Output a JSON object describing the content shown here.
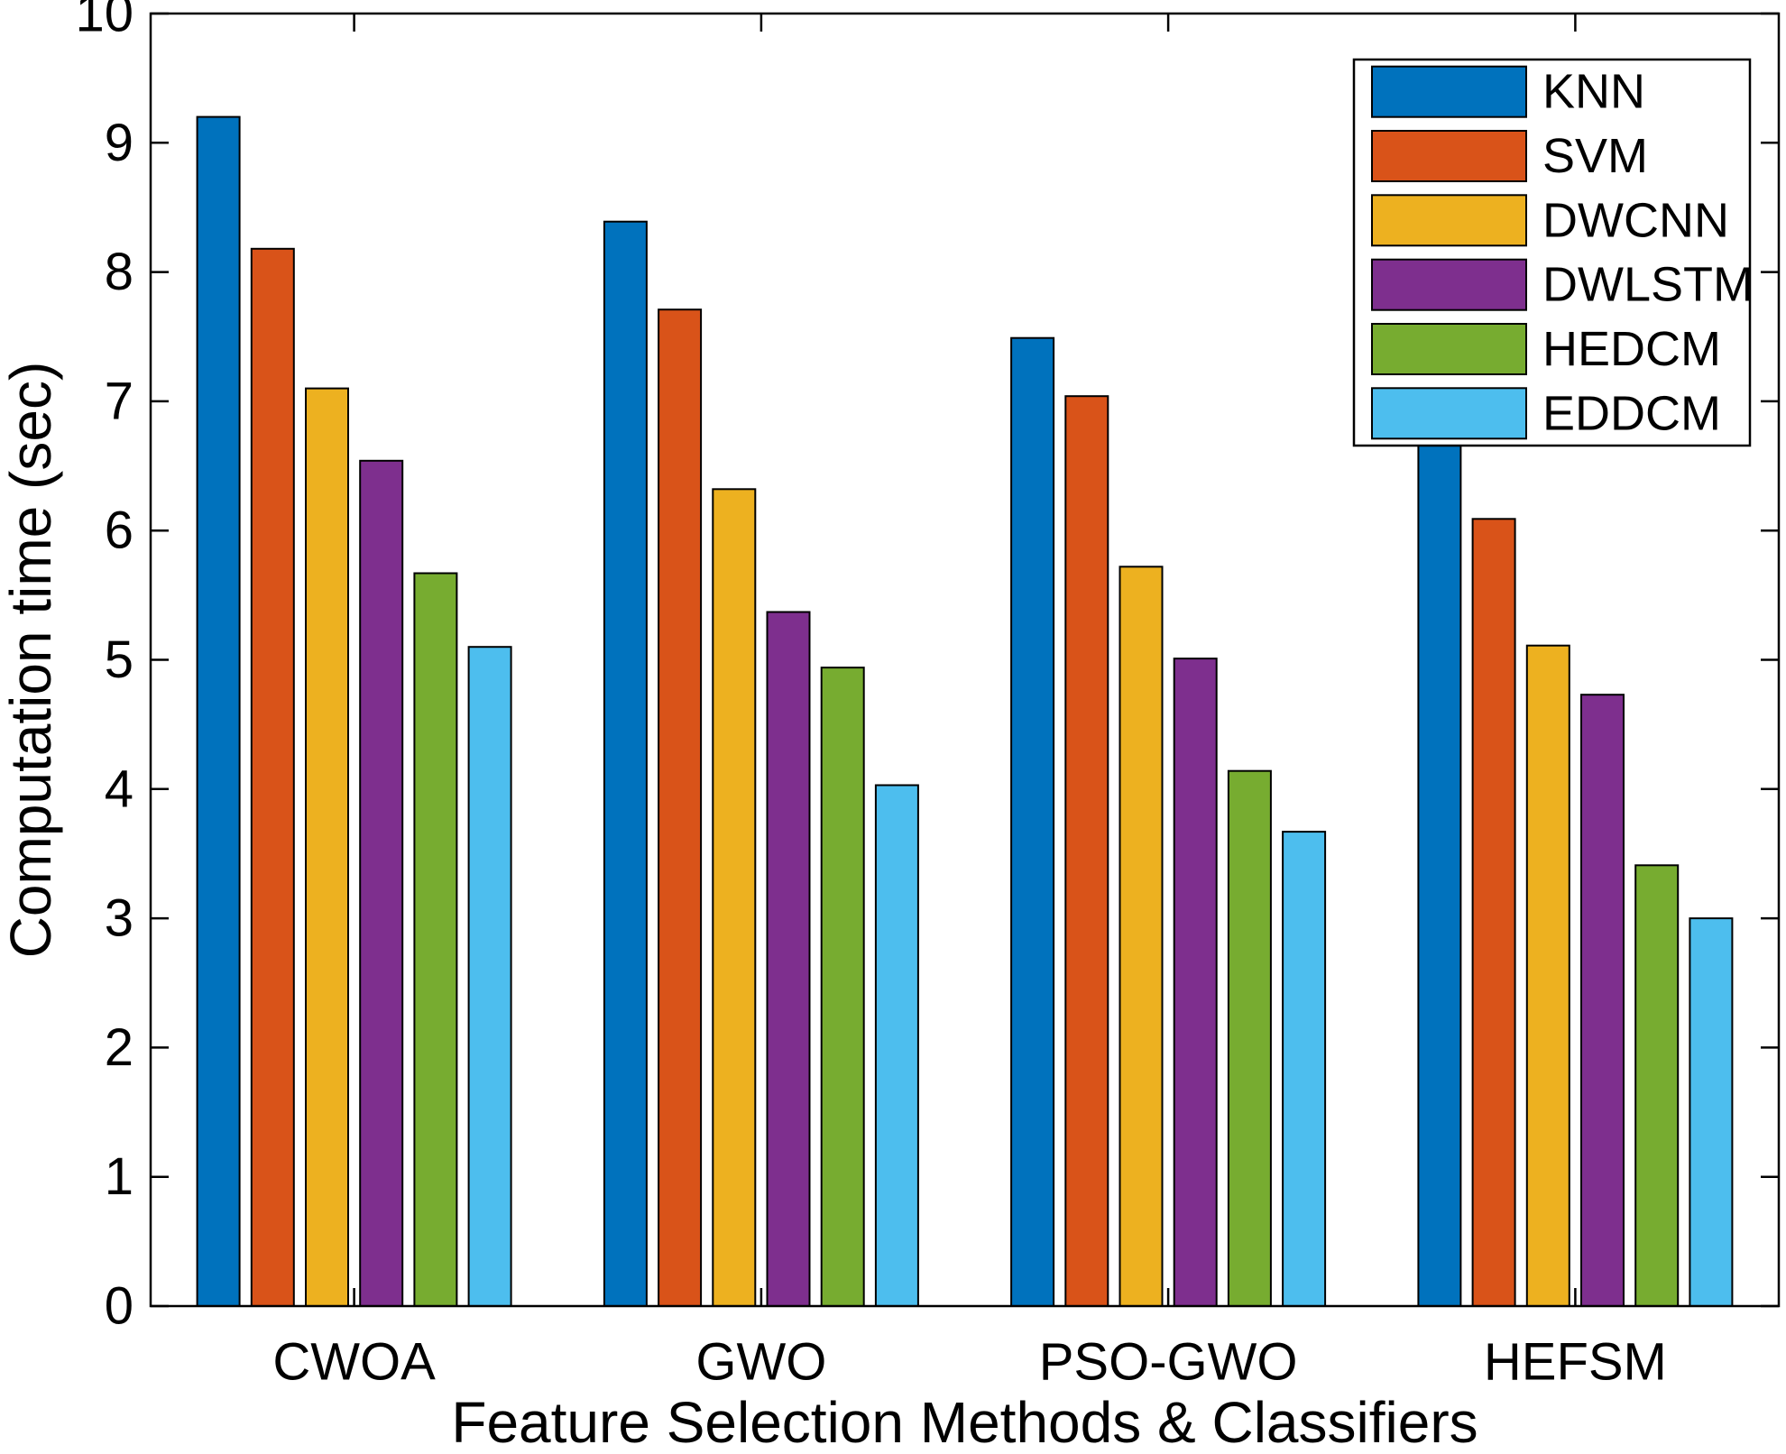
{
  "figure": {
    "background": "#ffffff",
    "axis_color": "#000000"
  },
  "chart_data": {
    "type": "bar",
    "title": "",
    "xlabel": "Feature Selection Methods & Classifiers",
    "ylabel": "Computation time (sec)",
    "categories": [
      "CWOA",
      "GWO",
      "PSO-GWO",
      "HEFSM"
    ],
    "series": [
      {
        "name": "KNN",
        "color": "#0072BD",
        "values": [
          9.2,
          8.39,
          7.49,
          6.75
        ]
      },
      {
        "name": "SVM",
        "color": "#D95319",
        "values": [
          8.18,
          7.71,
          7.04,
          6.09
        ]
      },
      {
        "name": "DWCNN",
        "color": "#EDB120",
        "values": [
          7.1,
          6.32,
          5.72,
          5.11
        ]
      },
      {
        "name": "DWLSTM",
        "color": "#7E2F8E",
        "values": [
          6.54,
          5.37,
          5.01,
          4.73
        ]
      },
      {
        "name": "HEDCM",
        "color": "#77AC30",
        "values": [
          5.67,
          4.94,
          4.14,
          3.41
        ]
      },
      {
        "name": "EDDCM",
        "color": "#4DBEEE",
        "values": [
          5.1,
          4.03,
          3.67,
          3.0
        ]
      }
    ],
    "bar_edge_color": "#000000",
    "ylim": [
      0,
      10
    ],
    "yticks": [
      0,
      1,
      2,
      3,
      4,
      5,
      6,
      7,
      8,
      9,
      10
    ],
    "grid": false,
    "legend_position": "northeast",
    "note": "HEFSM KNN bar top is partially occluded by the legend box"
  }
}
